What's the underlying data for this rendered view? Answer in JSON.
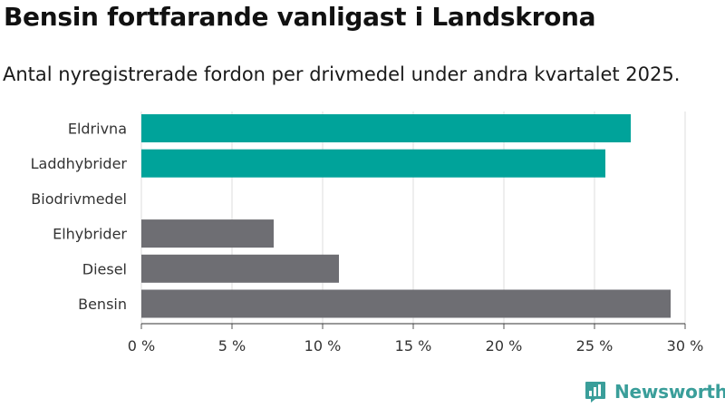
{
  "chart_data": {
    "type": "bar",
    "orientation": "horizontal",
    "title": "Bensin fortfarande vanligast i Landskrona",
    "subtitle": "Antal nyregistrerade fordon per drivmedel under andra kvartalet 2025.",
    "categories": [
      "Eldrivna",
      "Laddhybrider",
      "Biodrivmedel",
      "Elhybrider",
      "Diesel",
      "Bensin"
    ],
    "values": [
      27.0,
      25.6,
      0,
      7.3,
      10.9,
      29.2
    ],
    "bar_colors": [
      "#00a39a",
      "#00a39a",
      "#00a39a",
      "#6e6e73",
      "#6e6e73",
      "#6e6e73"
    ],
    "xlim": [
      0,
      30
    ],
    "x_ticks": [
      0,
      5,
      10,
      15,
      20,
      25,
      30
    ],
    "x_tick_labels": [
      "0 %",
      "5 %",
      "10 %",
      "15 %",
      "20 %",
      "25 %",
      "30 %"
    ],
    "xlabel": "",
    "ylabel": "",
    "grid": "vertical"
  },
  "brand": {
    "name": "Newsworthy",
    "color": "#3a9e9a",
    "icon": "bar-chart-logo-icon"
  }
}
